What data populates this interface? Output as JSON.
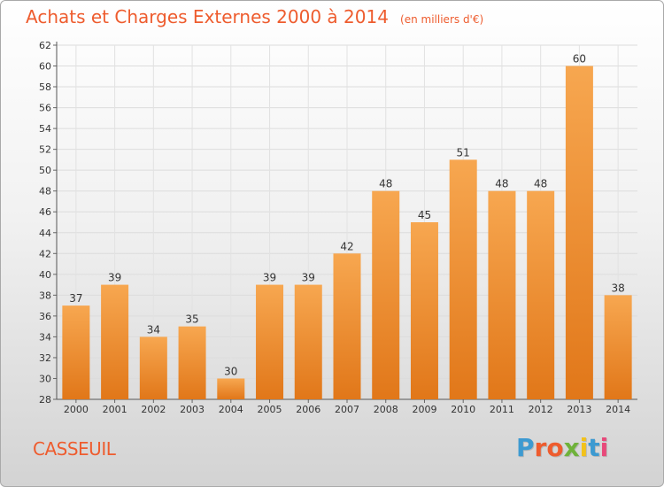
{
  "chart_data": {
    "type": "bar",
    "title": "Achats et Charges Externes 2000 à 2014",
    "subtitle": "(en milliers d'€)",
    "categories": [
      "2000",
      "2001",
      "2002",
      "2003",
      "2004",
      "2005",
      "2006",
      "2007",
      "2008",
      "2009",
      "2010",
      "2011",
      "2012",
      "2013",
      "2014"
    ],
    "values": [
      37,
      39,
      34,
      35,
      30,
      39,
      39,
      42,
      48,
      45,
      51,
      48,
      48,
      60,
      38
    ],
    "ylim": [
      28,
      62
    ],
    "yticks": [
      28,
      30,
      32,
      34,
      36,
      38,
      40,
      42,
      44,
      46,
      48,
      50,
      52,
      54,
      56,
      58,
      60,
      62
    ],
    "grid": true,
    "bar_color_top": "#f7a750",
    "bar_color_bottom": "#e17719"
  },
  "labels": {
    "commune": "CASSEUIL",
    "brand": "Proxiti"
  },
  "colors": {
    "title": "#ee5c2e",
    "brand_letters": [
      "#3d9ad1",
      "#ee5c2e",
      "#ee5c2e",
      "#6fb23a",
      "#f2c21b",
      "#3d9ad1",
      "#e8497a"
    ]
  }
}
